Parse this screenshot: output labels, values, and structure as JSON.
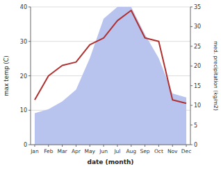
{
  "chart_data": {
    "type": "line",
    "xlabel": "date (month)",
    "ylabel": "max temp (C)",
    "y2label": "med. precipitation (kg/m2)",
    "categories": [
      "Jan",
      "Feb",
      "Mar",
      "Apr",
      "May",
      "Jun",
      "Jul",
      "Aug",
      "Sep",
      "Oct",
      "Nov",
      "Dec"
    ],
    "series": [
      {
        "type": "area",
        "axis": "y2",
        "color": "#b8c4ee",
        "values": [
          8,
          9,
          11,
          14,
          22,
          32,
          35,
          35,
          28,
          22,
          13,
          12
        ]
      },
      {
        "type": "line",
        "color": "#b03030",
        "values": [
          13,
          20,
          23,
          24,
          29,
          31,
          36,
          39,
          31,
          30,
          13,
          12
        ]
      }
    ],
    "ylim": [
      0,
      40
    ],
    "yticks": [
      0,
      10,
      20,
      30,
      40
    ],
    "y2lim": [
      0,
      35
    ],
    "y2ticks": [
      0,
      5,
      10,
      15,
      20,
      25,
      30,
      35
    ],
    "grid": true
  }
}
